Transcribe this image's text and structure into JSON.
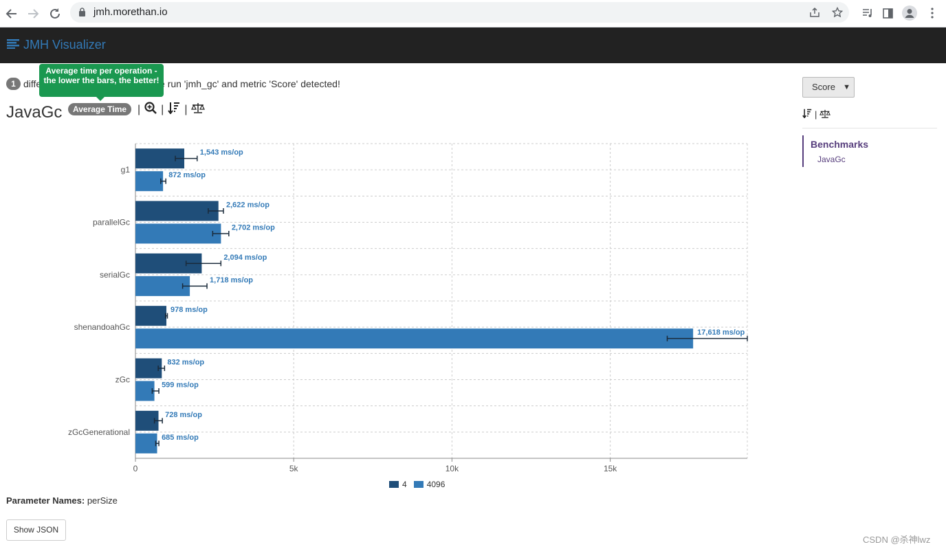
{
  "browser": {
    "url": "jmh.morethan.io",
    "icons": [
      "back-arrow-icon",
      "forward-arrow-icon",
      "reload-icon",
      "lock-icon",
      "share-icon",
      "star-icon",
      "media-icon",
      "sidepanel-icon",
      "profile-icon",
      "kebab-icon"
    ]
  },
  "navbar": {
    "brand": "JMH Visualizer"
  },
  "info": {
    "count": "1",
    "prefix": "diffe",
    "text": "single run 'jmh_gc' and metric 'Score' detected!"
  },
  "tooltip": {
    "text": "Average time per operation - the lower the bars, the better!"
  },
  "benchmark": {
    "title": "JavaGc",
    "mode": "Average Time",
    "separators": [
      "|",
      "|",
      "|"
    ]
  },
  "sidebar": {
    "select_value": "Score",
    "separator": "|",
    "nav_header": "Benchmarks",
    "nav_item": "JavaGc"
  },
  "chart_data": {
    "type": "bar",
    "orientation": "horizontal",
    "categories": [
      "g1",
      "parallelGc",
      "serialGc",
      "shenandoahGc",
      "zGc",
      "zGcGenerational"
    ],
    "series": [
      {
        "name": "4",
        "color": "#1f4e79",
        "values": [
          1543,
          2622,
          2094,
          978,
          832,
          728
        ],
        "error_low": [
          1260,
          2300,
          1600,
          950,
          720,
          600
        ],
        "error_high": [
          1950,
          2780,
          2700,
          1010,
          920,
          850
        ],
        "labels": [
          "1,543 ms/op",
          "2,622 ms/op",
          "2,094 ms/op",
          "978 ms/op",
          "832 ms/op",
          "728 ms/op"
        ]
      },
      {
        "name": "4096",
        "color": "#337ab7",
        "values": [
          872,
          2702,
          1718,
          17618,
          599,
          685
        ],
        "error_low": [
          800,
          2440,
          1490,
          16800,
          530,
          640
        ],
        "error_high": [
          960,
          2950,
          2260,
          19330,
          740,
          740
        ],
        "labels": [
          "872 ms/op",
          "2,702 ms/op",
          "1,718 ms/op",
          "17,618 ms/op",
          "599 ms/op",
          "685 ms/op"
        ]
      }
    ],
    "xlim": [
      0,
      19330
    ],
    "xticks": [
      0,
      5000,
      10000,
      15000
    ],
    "xtick_labels": [
      "0",
      "5k",
      "10k",
      "15k"
    ],
    "grid": true,
    "legend": "bottom-center"
  },
  "footer": {
    "param_label": "Parameter Names:",
    "param_value": "perSize",
    "json_button": "Show JSON",
    "watermark": "CSDN @杀神lwz"
  }
}
